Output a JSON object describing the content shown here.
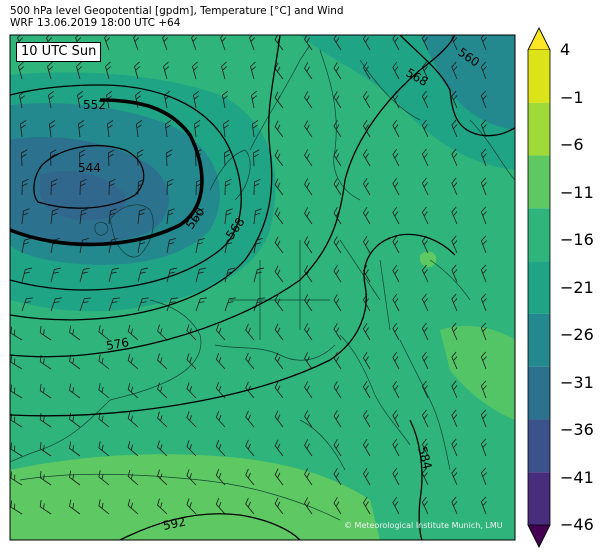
{
  "header": {
    "line1": "500 hPa level Geopotential [gpdm], Temperature [°C] and Wind",
    "line2": "WRF 13.06.2019 18:00 UTC +64"
  },
  "map": {
    "time_label": "10 UTC Sun",
    "copyright": "© Meteorological Institute Munich, LMU",
    "contour_labels": [
      "552",
      "544",
      "560",
      "568",
      "576",
      "560",
      "568",
      "584",
      "592"
    ]
  },
  "colorbar": {
    "levels": [
      "4",
      "−1",
      "−6",
      "−11",
      "−16",
      "−21",
      "−26",
      "−31",
      "−36",
      "−41",
      "−46"
    ],
    "colors": [
      "#fde725",
      "#dce319",
      "#a0da39",
      "#5ec962",
      "#2fb47c",
      "#20a486",
      "#23898e",
      "#2c728e",
      "#3b528b",
      "#472d7b",
      "#440154"
    ]
  },
  "colors": {
    "cold_core": "#2a6f8e",
    "mid": "#2a9c82",
    "warm": "#3db36f",
    "contour": "#000000"
  }
}
